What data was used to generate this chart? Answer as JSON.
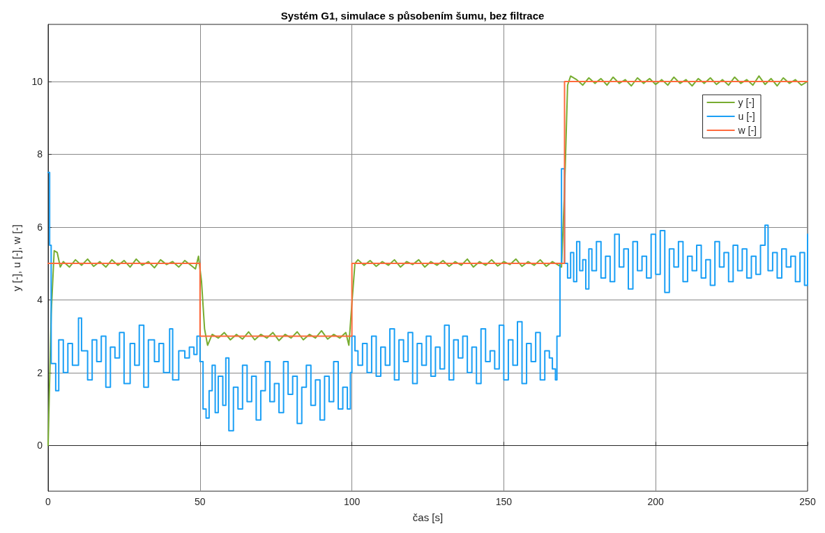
{
  "chart_data": {
    "type": "line",
    "title": "Systém G1, simulace s působením šumu, bez filtrace",
    "xlabel": "čas [s]",
    "ylabel": "y [-], u [-], w [-]",
    "xlim": [
      0,
      250
    ],
    "xticks": [
      0,
      50,
      100,
      150,
      200,
      250
    ],
    "ylim": [
      -1.26,
      11.57
    ],
    "yticks": [
      0,
      2,
      4,
      6,
      8,
      10
    ],
    "grid": true,
    "legend": "top right",
    "marker": "none",
    "line_style": "solid",
    "series": [
      {
        "name": "y [-]",
        "color": "#77ac30",
        "x": [
          0,
          1,
          2,
          3,
          4,
          5,
          7,
          9,
          11,
          13,
          15,
          17,
          19,
          21,
          23,
          25,
          27,
          29,
          31,
          33,
          35,
          37,
          39,
          41,
          43,
          45,
          47,
          48.5,
          49.5,
          50.5,
          51.5,
          52.5,
          54,
          56,
          58,
          60,
          62,
          64,
          66,
          68,
          70,
          72,
          74,
          76,
          78,
          80,
          82,
          84,
          86,
          88,
          90,
          92,
          94,
          96,
          98,
          99,
          100,
          101,
          102,
          104,
          106,
          108,
          110,
          112,
          114,
          116,
          118,
          120,
          122,
          124,
          126,
          128,
          130,
          132,
          134,
          136,
          138,
          140,
          142,
          144,
          146,
          148,
          150,
          152,
          154,
          156,
          158,
          160,
          162,
          164,
          166,
          168,
          169,
          170,
          171,
          172,
          174,
          176,
          178,
          180,
          182,
          184,
          186,
          188,
          190,
          192,
          194,
          196,
          198,
          200,
          202,
          204,
          206,
          208,
          210,
          212,
          214,
          216,
          218,
          220,
          222,
          224,
          226,
          228,
          230,
          232,
          234,
          236,
          238,
          240,
          242,
          244,
          246,
          248,
          250
        ],
        "values": [
          0,
          3.6,
          5.35,
          5.3,
          4.9,
          5.05,
          4.9,
          5.1,
          4.95,
          5.12,
          4.92,
          5.05,
          4.9,
          5.1,
          4.95,
          5.08,
          4.9,
          5.12,
          4.95,
          5.05,
          4.88,
          5.1,
          4.97,
          5.05,
          4.9,
          5.08,
          4.95,
          4.85,
          5.2,
          4.5,
          3.2,
          2.75,
          3.05,
          2.95,
          3.1,
          2.9,
          3.05,
          2.92,
          3.12,
          2.9,
          3.05,
          2.95,
          3.1,
          2.88,
          3.05,
          2.95,
          3.12,
          2.9,
          3.05,
          2.95,
          3.15,
          2.92,
          3.05,
          2.95,
          3.1,
          2.75,
          3.9,
          5.0,
          5.1,
          4.95,
          5.08,
          4.92,
          5.05,
          4.95,
          5.1,
          4.9,
          5.05,
          4.97,
          5.1,
          4.9,
          5.05,
          4.95,
          5.08,
          4.92,
          5.05,
          4.95,
          5.12,
          4.9,
          5.05,
          4.95,
          5.1,
          4.93,
          5.05,
          4.97,
          5.12,
          4.92,
          5.05,
          4.95,
          5.1,
          4.92,
          5.05,
          4.95,
          4.9,
          7.0,
          9.9,
          10.15,
          10.05,
          9.9,
          10.1,
          9.95,
          10.08,
          9.9,
          10.12,
          9.95,
          10.05,
          9.88,
          10.1,
          9.95,
          10.08,
          9.92,
          10.05,
          9.9,
          10.12,
          9.95,
          10.05,
          9.88,
          10.08,
          9.95,
          10.1,
          9.92,
          10.05,
          9.9,
          10.12,
          9.95,
          10.05,
          9.9,
          10.15,
          9.92,
          10.08,
          9.88,
          10.1,
          9.95,
          10.05,
          9.9,
          10.0
        ]
      },
      {
        "name": "u [-]",
        "color": "#1a9ff5",
        "type": "step",
        "x": [
          0,
          0.5,
          1,
          2.5,
          3.5,
          5,
          6.5,
          8,
          10,
          11,
          13,
          14.5,
          16,
          17.5,
          19,
          20.5,
          22,
          23.5,
          25,
          27,
          28.5,
          30,
          31.5,
          33,
          35,
          36.5,
          38,
          40,
          41,
          43,
          45,
          46.5,
          48,
          49,
          50,
          51,
          52,
          53,
          54,
          55,
          56,
          57.5,
          58.5,
          59.5,
          61,
          62.5,
          64,
          65.5,
          67,
          68.5,
          70,
          71.5,
          73,
          74.5,
          76,
          77.5,
          79,
          80.5,
          82,
          83.5,
          85,
          86.5,
          88,
          89.5,
          91,
          92.5,
          94,
          95.5,
          97,
          98.5,
          99.5,
          100,
          101,
          102,
          103.5,
          105,
          106.5,
          108,
          109.5,
          111,
          112.5,
          114,
          115.5,
          117,
          118.5,
          120,
          121.5,
          123,
          124.5,
          126,
          127.5,
          129,
          130.5,
          132,
          133.5,
          135,
          136.5,
          138,
          139.5,
          141,
          142.5,
          144,
          145.5,
          147,
          148.5,
          150,
          151.5,
          153,
          154.5,
          156,
          157.5,
          159,
          160.5,
          162,
          163.5,
          165,
          166,
          167,
          167.5,
          168.5,
          169,
          170,
          171,
          172,
          173,
          174,
          175,
          176,
          177,
          178,
          179,
          180.5,
          182,
          183.5,
          185,
          186.5,
          188,
          189.5,
          191,
          192.5,
          194,
          195.5,
          197,
          198.5,
          200,
          201.5,
          203,
          204.5,
          206,
          207.5,
          209,
          210.5,
          212,
          213.5,
          215,
          216.5,
          218,
          219.5,
          221,
          222.5,
          224,
          225.5,
          227,
          228.5,
          230,
          231.5,
          233,
          234.5,
          236,
          237,
          238.5,
          240,
          241.5,
          243,
          244.5,
          246,
          247.5,
          249,
          250
        ],
        "values": [
          7.5,
          5.5,
          2.25,
          1.5,
          2.9,
          2.0,
          2.8,
          2.2,
          3.5,
          2.6,
          1.8,
          2.9,
          2.3,
          3.0,
          1.6,
          2.7,
          2.4,
          3.1,
          1.7,
          2.8,
          2.2,
          3.3,
          1.6,
          2.9,
          2.3,
          2.8,
          2.0,
          3.2,
          1.8,
          2.6,
          2.4,
          2.7,
          2.5,
          3.0,
          2.3,
          1.0,
          0.75,
          1.5,
          2.2,
          0.9,
          1.9,
          1.1,
          2.4,
          0.4,
          1.6,
          1.0,
          2.2,
          1.2,
          1.9,
          0.7,
          1.5,
          2.3,
          1.2,
          1.7,
          0.9,
          2.3,
          1.4,
          1.9,
          0.6,
          1.6,
          2.2,
          1.1,
          1.8,
          0.7,
          1.9,
          1.2,
          2.3,
          1.0,
          1.6,
          1.0,
          2.0,
          3.0,
          2.6,
          2.2,
          2.8,
          2.0,
          3.0,
          1.9,
          2.7,
          2.2,
          3.2,
          1.8,
          2.9,
          2.3,
          3.1,
          1.7,
          2.8,
          2.2,
          3.0,
          1.9,
          2.7,
          2.1,
          3.3,
          1.8,
          2.9,
          2.4,
          3.0,
          2.0,
          2.7,
          1.7,
          3.2,
          2.3,
          2.6,
          2.1,
          3.3,
          1.8,
          2.9,
          2.2,
          3.4,
          1.7,
          2.8,
          2.3,
          3.1,
          1.8,
          2.6,
          2.4,
          2.1,
          1.8,
          3.0,
          5.0,
          7.6,
          5.0,
          4.6,
          5.3,
          4.5,
          5.6,
          4.8,
          5.1,
          4.3,
          5.4,
          4.8,
          5.6,
          4.6,
          5.2,
          4.5,
          5.8,
          4.9,
          5.4,
          4.3,
          5.6,
          4.8,
          5.2,
          4.6,
          5.8,
          4.7,
          5.9,
          4.2,
          5.4,
          4.9,
          5.6,
          4.5,
          5.2,
          4.8,
          5.5,
          4.6,
          5.1,
          4.4,
          5.6,
          4.9,
          5.3,
          4.5,
          5.5,
          4.8,
          5.4,
          4.6,
          5.2,
          4.7,
          5.5,
          6.05,
          4.8,
          5.3,
          4.6,
          5.4,
          4.9,
          5.2,
          4.5,
          5.3,
          4.4,
          5.8
        ]
      },
      {
        "name": "w [-]",
        "color": "#ff6a3d",
        "type": "step",
        "x": [
          0,
          50,
          100,
          170,
          250
        ],
        "values": [
          5,
          3,
          5,
          10,
          10
        ]
      }
    ]
  }
}
